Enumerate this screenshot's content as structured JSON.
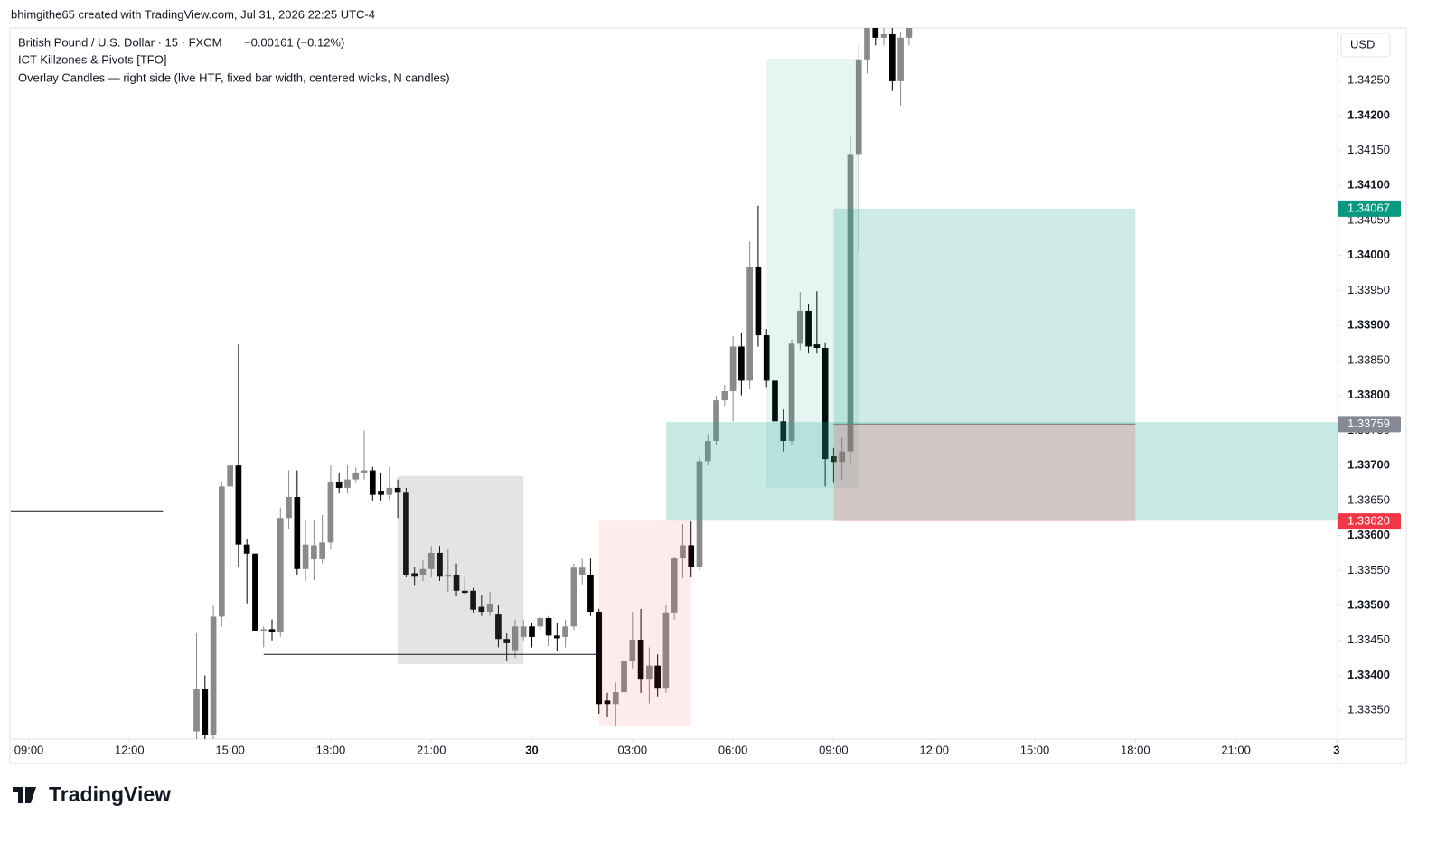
{
  "header": "bhimgithe65 created with TradingView.com, Jul 31, 2026 22:25 UTC-4",
  "brand": "TradingView",
  "chart_data": {
    "type": "candlestick",
    "title": "British Pound / U.S. Dollar · 15 · FXCM",
    "change": "−0.00161 (−0.12%)",
    "indicators": [
      "ICT Killzones & Pivots [TFO]",
      "Overlay Candles — right side (live HTF, fixed bar width, centered wicks, N candles)"
    ],
    "currency": "USD",
    "up_color": "#8a8a8a",
    "down_color": "#000000",
    "xlim": [
      -0.54,
      39.03
    ],
    "xticks": [
      {
        "value": 0,
        "label": "09:00"
      },
      {
        "value": 3,
        "label": "12:00"
      },
      {
        "value": 6,
        "label": "15:00"
      },
      {
        "value": 9,
        "label": "18:00"
      },
      {
        "value": 12,
        "label": "21:00"
      },
      {
        "value": 15,
        "label": "30"
      },
      {
        "value": 18,
        "label": "03:00"
      },
      {
        "value": 21,
        "label": "06:00"
      },
      {
        "value": 24,
        "label": "09:00"
      },
      {
        "value": 27,
        "label": "12:00"
      },
      {
        "value": 30,
        "label": "15:00"
      },
      {
        "value": 33,
        "label": "18:00"
      },
      {
        "value": 36,
        "label": "21:00"
      },
      {
        "value": 39,
        "label": "3"
      }
    ],
    "ylim": [
      1.33309,
      1.34325
    ],
    "yticks": [
      {
        "value": 1.3335,
        "label": "1.33350"
      },
      {
        "value": 1.334,
        "label": "1.33400"
      },
      {
        "value": 1.3345,
        "label": "1.33450"
      },
      {
        "value": 1.335,
        "label": "1.33500"
      },
      {
        "value": 1.3355,
        "label": "1.33550"
      },
      {
        "value": 1.336,
        "label": "1.33600"
      },
      {
        "value": 1.3365,
        "label": "1.33650"
      },
      {
        "value": 1.337,
        "label": "1.33700"
      },
      {
        "value": 1.3375,
        "label": "1.33750"
      },
      {
        "value": 1.338,
        "label": "1.33800"
      },
      {
        "value": 1.3385,
        "label": "1.33850"
      },
      {
        "value": 1.339,
        "label": "1.33900"
      },
      {
        "value": 1.3395,
        "label": "1.33950"
      },
      {
        "value": 1.34,
        "label": "1.34000"
      },
      {
        "value": 1.3405,
        "label": "1.34050"
      },
      {
        "value": 1.341,
        "label": "1.34100"
      },
      {
        "value": 1.3415,
        "label": "1.34150"
      },
      {
        "value": 1.342,
        "label": "1.34200"
      },
      {
        "value": 1.3425,
        "label": "1.34250"
      }
    ],
    "x": [
      5,
      5.25,
      5.5,
      5.75,
      6,
      6.25,
      6.5,
      6.75,
      7,
      7.25,
      7.5,
      7.75,
      8,
      8.25,
      8.5,
      8.75,
      9,
      9.25,
      9.5,
      9.75,
      10,
      10.25,
      10.5,
      10.75,
      11,
      11.25,
      11.5,
      11.75,
      12,
      12.25,
      12.5,
      12.75,
      13,
      13.25,
      13.5,
      13.75,
      14,
      14.25,
      14.5,
      14.75,
      15,
      15.25,
      15.5,
      15.75,
      16,
      16.25,
      16.5,
      16.75,
      17,
      17.25,
      17.5,
      17.75,
      18,
      18.25,
      18.5,
      18.75,
      19,
      19.25,
      19.5,
      19.75,
      20,
      20.25,
      20.5,
      20.75,
      21,
      21.25,
      21.5,
      21.75,
      22,
      22.25,
      22.5,
      22.75,
      23,
      23.25,
      23.5,
      23.75,
      24,
      24.25,
      24.5,
      24.75,
      25,
      25.25,
      25.5,
      25.75,
      26,
      26.25
    ],
    "open": [
      1.3332,
      1.3338,
      1.33315,
      1.33484,
      1.3367,
      1.337,
      1.33587,
      1.33574,
      1.33464,
      1.33466,
      1.33462,
      1.33625,
      1.33655,
      1.33552,
      1.33566,
      1.33566,
      1.3359,
      1.33677,
      1.33668,
      1.3368,
      1.3369,
      1.33693,
      1.33664,
      1.33658,
      1.33668,
      1.33661,
      1.33546,
      1.33544,
      1.33552,
      1.33575,
      1.33541,
      1.33544,
      1.33521,
      1.33521,
      1.33498,
      1.33491,
      1.33487,
      1.33452,
      1.33436,
      1.33455,
      1.3347,
      1.3347,
      1.33482,
      1.33457,
      1.33455,
      1.3347,
      1.33544,
      1.33544,
      1.33491,
      1.33364,
      1.33359,
      1.33376,
      1.3342,
      1.33451,
      1.33394,
      1.33414,
      1.33381,
      1.3349,
      1.33567,
      1.33586,
      1.33555,
      1.33706,
      1.33735,
      1.33793,
      1.33806,
      1.3387,
      1.33821,
      1.33984,
      1.33886,
      1.33821,
      1.33763,
      1.33735,
      1.33874,
      1.33921,
      1.33873,
      1.33868,
      1.33713,
      1.33705,
      1.3372,
      1.34145,
      1.3428,
      1.3433,
      1.34311,
      1.34316,
      1.34249,
      1.34311
    ],
    "high": [
      1.3346,
      1.334,
      1.335,
      1.33677,
      1.33705,
      1.33873,
      1.33595,
      1.33574,
      1.3347,
      1.3348,
      1.3364,
      1.33693,
      1.33693,
      1.33623,
      1.33623,
      1.33629,
      1.337,
      1.3369,
      1.337,
      1.33697,
      1.3375,
      1.33698,
      1.3369,
      1.33698,
      1.3368,
      1.33668,
      1.33555,
      1.33565,
      1.33585,
      1.33585,
      1.3358,
      1.3356,
      1.3354,
      1.33525,
      1.33515,
      1.33519,
      1.335,
      1.3346,
      1.3348,
      1.3348,
      1.33475,
      1.33485,
      1.33485,
      1.33475,
      1.3348,
      1.3356,
      1.33567,
      1.33567,
      1.33495,
      1.33375,
      1.3339,
      1.3343,
      1.33491,
      1.33495,
      1.3344,
      1.3343,
      1.335,
      1.3357,
      1.33616,
      1.3362,
      1.33712,
      1.33745,
      1.338,
      1.33815,
      1.33885,
      1.3389,
      1.3402,
      1.34071,
      1.33895,
      1.3384,
      1.3378,
      1.3388,
      1.33948,
      1.3393,
      1.33949,
      1.33875,
      1.33725,
      1.3374,
      1.34169,
      1.343,
      1.3434,
      1.3434,
      1.3433,
      1.3433,
      1.3432,
      1.3434
    ],
    "low": [
      1.333,
      1.333,
      1.333,
      1.3347,
      1.33555,
      1.33555,
      1.33503,
      1.33464,
      1.3344,
      1.3345,
      1.33455,
      1.3361,
      1.33544,
      1.33535,
      1.33536,
      1.3356,
      1.3358,
      1.3366,
      1.3366,
      1.33675,
      1.3368,
      1.3365,
      1.3365,
      1.3365,
      1.33625,
      1.3354,
      1.33528,
      1.33535,
      1.3354,
      1.33535,
      1.33519,
      1.33513,
      1.33515,
      1.3349,
      1.33485,
      1.33485,
      1.3344,
      1.3342,
      1.33425,
      1.3345,
      1.3344,
      1.33465,
      1.33442,
      1.33435,
      1.3344,
      1.33465,
      1.3353,
      1.33485,
      1.33345,
      1.3334,
      1.33328,
      1.3336,
      1.3341,
      1.33375,
      1.3336,
      1.3337,
      1.33375,
      1.3348,
      1.33539,
      1.3354,
      1.3355,
      1.337,
      1.3373,
      1.33785,
      1.33763,
      1.338,
      1.3381,
      1.3387,
      1.33812,
      1.33735,
      1.3372,
      1.3373,
      1.33865,
      1.3386,
      1.3386,
      1.3367,
      1.33675,
      1.3368,
      1.337,
      1.34003,
      1.3426,
      1.343,
      1.343,
      1.34235,
      1.34214,
      1.343
    ],
    "close": [
      1.3338,
      1.33315,
      1.33484,
      1.3367,
      1.337,
      1.33587,
      1.33574,
      1.33464,
      1.33466,
      1.33462,
      1.33625,
      1.33655,
      1.33552,
      1.33587,
      1.33586,
      1.3359,
      1.33677,
      1.33668,
      1.3368,
      1.3369,
      1.33693,
      1.33658,
      1.33658,
      1.33668,
      1.33661,
      1.33544,
      1.33541,
      1.33552,
      1.33575,
      1.33541,
      1.33544,
      1.33521,
      1.33518,
      1.33494,
      1.33491,
      1.33502,
      1.33452,
      1.33446,
      1.3347,
      1.3347,
      1.33455,
      1.33482,
      1.33457,
      1.33453,
      1.3347,
      1.33554,
      1.33554,
      1.33491,
      1.33359,
      1.33359,
      1.33376,
      1.3342,
      1.33451,
      1.33394,
      1.33414,
      1.33381,
      1.3349,
      1.33567,
      1.33586,
      1.33555,
      1.33706,
      1.33735,
      1.33793,
      1.33806,
      1.3387,
      1.33821,
      1.33984,
      1.33886,
      1.33821,
      1.33763,
      1.33735,
      1.33874,
      1.33921,
      1.3387,
      1.33868,
      1.33709,
      1.33705,
      1.3372,
      1.34145,
      1.3428,
      1.3433,
      1.34311,
      1.34316,
      1.34249,
      1.34311,
      1.3433
    ],
    "zones": [
      {
        "x": [
          11,
          14.75
        ],
        "y": [
          1.33416,
          1.33685
        ],
        "color": "rgba(120,120,120,0.2)"
      },
      {
        "x": [
          17,
          19.75
        ],
        "y": [
          1.33328,
          1.33621
        ],
        "color": "rgba(242,54,69,0.1)"
      },
      {
        "x": [
          22,
          24.75
        ],
        "y": [
          1.33668,
          1.34281
        ],
        "color": "rgba(8,153,129,0.1)"
      },
      {
        "x": [
          19,
          39.03
        ],
        "y": [
          1.33621,
          1.33762
        ],
        "color": "rgba(34,171,148,0.25)"
      }
    ],
    "levels": [
      {
        "x": [
          -0.54,
          4
        ],
        "y": 1.33634,
        "color": "#131722"
      },
      {
        "x": [
          7,
          17
        ],
        "y": 1.3343,
        "color": "#131722"
      }
    ],
    "position": {
      "x": [
        24,
        33
      ],
      "entry": 1.33759,
      "target": 1.34067,
      "stop": 1.3362,
      "target_color": "rgba(8,153,129,0.2)",
      "stop_color": "rgba(242,54,69,0.2)"
    },
    "price_labels": [
      {
        "value": 1.34067,
        "label": "1.34067",
        "color": "#089981"
      },
      {
        "value": 1.33759,
        "label": "1.33759",
        "color": "#868993"
      },
      {
        "value": 1.3362,
        "label": "1.33620",
        "color": "#f23645"
      }
    ]
  }
}
